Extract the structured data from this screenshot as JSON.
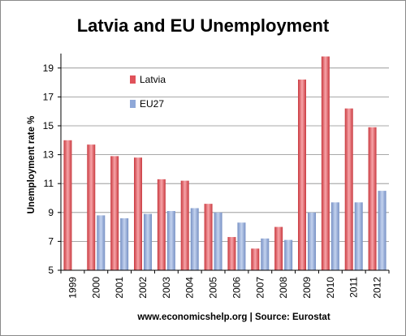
{
  "chart_data": {
    "type": "bar",
    "title": "Latvia and EU Unemployment",
    "ylabel": "Unemployment rate %",
    "xlabel": "",
    "source_note": "www.economicshelp.org | Source: Eurostat",
    "categories": [
      "1999",
      "2000",
      "2001",
      "2002",
      "2003",
      "2004",
      "2005",
      "2006",
      "2007",
      "2008",
      "2009",
      "2010",
      "2011",
      "2012"
    ],
    "ylim": [
      5,
      20
    ],
    "yticks": [
      5,
      7,
      9,
      11,
      13,
      15,
      17,
      19
    ],
    "grid": "horizontal",
    "legend_position": "top-left-inside",
    "series": [
      {
        "name": "Latvia",
        "color": "#e0525a",
        "values": [
          14.0,
          13.7,
          12.9,
          12.8,
          11.3,
          11.2,
          9.6,
          7.3,
          6.5,
          8.0,
          18.2,
          19.8,
          16.2,
          14.9
        ]
      },
      {
        "name": "EU27",
        "color": "#8fa8d8",
        "values": [
          null,
          8.8,
          8.6,
          8.9,
          9.1,
          9.3,
          9.0,
          8.3,
          7.2,
          7.1,
          9.0,
          9.7,
          9.7,
          10.5
        ]
      }
    ]
  }
}
